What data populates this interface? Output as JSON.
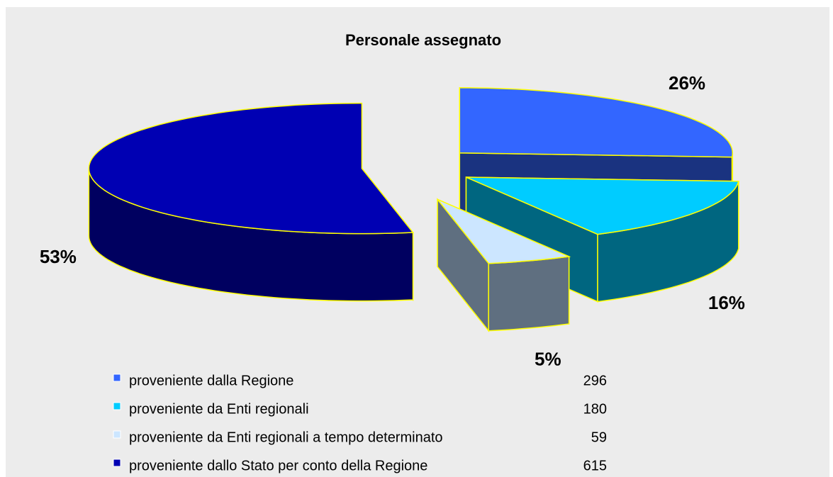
{
  "chart_data": {
    "type": "pie",
    "title": "Personale assegnato",
    "categories": [
      "proveniente dalla Regione",
      "proveniente da Enti regionali",
      "proveniente da Enti regionali a tempo determinato",
      "proveniente dallo Stato per conto della Regione"
    ],
    "values": [
      26,
      16,
      5,
      53
    ],
    "value_labels": [
      "26%",
      "16%",
      "5%",
      "53%"
    ],
    "counts": [
      296,
      180,
      59,
      615
    ],
    "colors": [
      "#3366ff",
      "#00ccff",
      "#cce6ff",
      "#0000b3"
    ],
    "side_colors": [
      "#1a3380",
      "#006680",
      "#5f6f80",
      "#000060"
    ],
    "edge_color": "#ffff00"
  }
}
